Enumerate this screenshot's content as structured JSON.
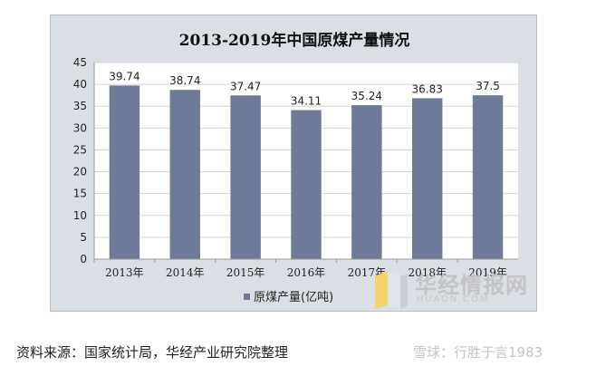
{
  "chart_data": {
    "type": "bar",
    "title": "2013-2019年中国原煤产量情况",
    "categories": [
      "2013年",
      "2014年",
      "2015年",
      "2016年",
      "2017年",
      "2018年",
      "2019年"
    ],
    "series": [
      {
        "name": "原煤产量(亿吨)",
        "values": [
          39.74,
          38.74,
          37.47,
          34.11,
          35.24,
          36.83,
          37.5
        ],
        "labels": [
          "39.74",
          "38.74",
          "37.47",
          "34.11",
          "35.24",
          "36.83",
          "37.5"
        ],
        "color": "#6f7a99"
      }
    ],
    "ylim": [
      0,
      45
    ],
    "yticks": [
      0,
      5,
      10,
      15,
      20,
      25,
      30,
      35,
      40,
      45
    ],
    "grid": true,
    "legend": "bottom"
  },
  "source": "资料来源：国家统计局，华经产业研究院整理",
  "watermarks": {
    "huajing_main": "华经情报网",
    "huajing_sub": "HUAON.COM",
    "xueqiu": "雪球：行胜于言1983"
  },
  "colors": {
    "bar": "#6f7a99",
    "plot_bg": "#ffffff",
    "frame_bg": "#d9dfe5",
    "grid": "#d4d4d4"
  }
}
